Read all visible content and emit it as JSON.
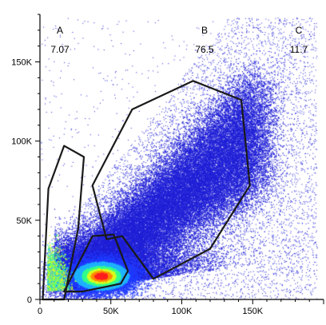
{
  "chart_data": {
    "type": "scatter",
    "title": "",
    "xlabel": "",
    "ylabel": "",
    "xlim": [
      0,
      200000
    ],
    "ylim": [
      0,
      180000
    ],
    "x_ticks": [
      {
        "value": 0,
        "label": "0"
      },
      {
        "value": 50000,
        "label": "50K"
      },
      {
        "value": 100000,
        "label": "100K"
      },
      {
        "value": 150000,
        "label": "150K"
      }
    ],
    "y_ticks": [
      {
        "value": 0,
        "label": "0"
      },
      {
        "value": 50000,
        "label": "50K"
      },
      {
        "value": 100000,
        "label": "100K"
      },
      {
        "value": 150000,
        "label": "150K"
      }
    ],
    "point_color": "#1f1fd6",
    "density_colors": [
      "#1f3bff",
      "#1fb2ff",
      "#33ff8c",
      "#d8ff1f",
      "#ff8c00",
      "#ff1f1f"
    ],
    "gate_color": "#1a1a1a",
    "gates": [
      {
        "name": "A",
        "value": "7.07",
        "vertices": [
          [
            2000,
            0
          ],
          [
            6000,
            70000
          ],
          [
            17000,
            97000
          ],
          [
            31000,
            90000
          ],
          [
            27000,
            45000
          ],
          [
            17000,
            0
          ]
        ]
      },
      {
        "name": "B",
        "value": "76.5",
        "vertices": [
          [
            37000,
            72000
          ],
          [
            65000,
            120000
          ],
          [
            108000,
            138000
          ],
          [
            142000,
            126000
          ],
          [
            148000,
            72000
          ],
          [
            120000,
            32000
          ],
          [
            80000,
            13000
          ],
          [
            58000,
            40000
          ],
          [
            47000,
            38000
          ]
        ]
      },
      {
        "name": "C",
        "value": "11.7",
        "vertices": [
          [
            17000,
            5000
          ],
          [
            37000,
            40000
          ],
          [
            52000,
            41000
          ],
          [
            62000,
            18000
          ],
          [
            57000,
            10000
          ],
          [
            30000,
            5000
          ]
        ]
      }
    ]
  }
}
